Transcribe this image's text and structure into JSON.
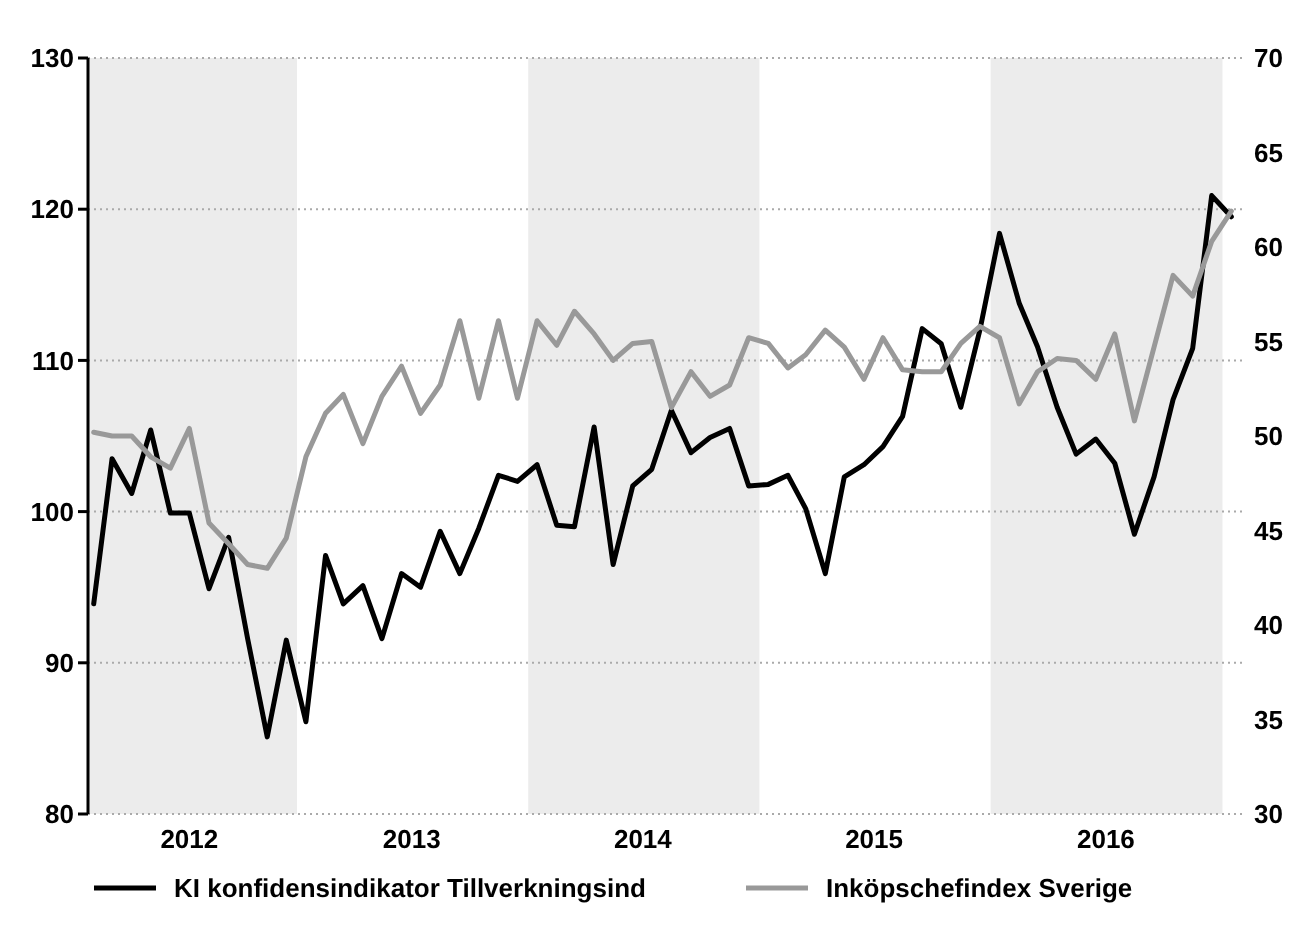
{
  "chart_data": {
    "type": "line",
    "x": [
      "2012-02-15",
      "2012-03-15",
      "2012-04-15",
      "2012-05-15",
      "2012-06-15",
      "2012-07-15",
      "2012-08-15",
      "2012-09-15",
      "2012-10-15",
      "2012-11-15",
      "2012-12-15",
      "2013-01-15",
      "2013-02-15",
      "2013-03-15",
      "2013-04-15",
      "2013-05-15",
      "2013-06-15",
      "2013-07-15",
      "2013-08-15",
      "2013-09-15",
      "2013-10-15",
      "2013-11-15",
      "2013-12-15",
      "2014-01-15",
      "2014-02-15",
      "2014-03-15",
      "2014-04-15",
      "2014-05-15",
      "2014-06-15",
      "2014-07-15",
      "2014-08-15",
      "2014-09-15",
      "2014-10-15",
      "2014-11-15",
      "2014-12-15",
      "2015-01-15",
      "2015-02-15",
      "2015-03-15",
      "2015-04-15",
      "2015-05-15",
      "2015-06-15",
      "2015-07-15",
      "2015-08-15",
      "2015-09-15",
      "2015-10-15",
      "2015-11-15",
      "2015-12-15",
      "2016-01-15",
      "2016-02-15",
      "2016-03-15",
      "2016-04-15",
      "2016-05-15",
      "2016-06-15",
      "2016-07-15",
      "2016-08-15",
      "2016-09-15",
      "2016-10-15",
      "2016-11-15",
      "2016-12-15",
      "2017-01-15"
    ],
    "series": [
      {
        "name": "KI konfidensindikator Tillverkningsind",
        "color": "#000000",
        "values": [
          93.9,
          103.5,
          101.2,
          105.4,
          99.9,
          99.9,
          94.9,
          98.3,
          91.6,
          85.1,
          91.5,
          86.1,
          97.1,
          93.9,
          95.1,
          91.6,
          95.9,
          95.0,
          98.7,
          95.9,
          98.9,
          102.4,
          102.0,
          103.1,
          99.1,
          99.0,
          105.6,
          96.5,
          101.7,
          102.8,
          106.7,
          103.9,
          104.9,
          105.5,
          101.7,
          101.8,
          102.4,
          100.2,
          95.9,
          102.3,
          103.1,
          104.3,
          106.3,
          112.1,
          111.1,
          106.9,
          112.0,
          118.4,
          113.8,
          110.9,
          106.9,
          103.8,
          104.8,
          103.2,
          98.5,
          102.3,
          107.4,
          110.8,
          120.9,
          119.5
        ]
      },
      {
        "name": "Inköpschefindex Sverige",
        "color": "#999999",
        "axis": "y2",
        "values": [
          50.2,
          50.0,
          50.0,
          48.9,
          48.3,
          50.4,
          45.4,
          44.3,
          43.2,
          43.0,
          44.6,
          48.9,
          51.2,
          52.2,
          49.6,
          52.1,
          53.7,
          51.2,
          52.7,
          56.1,
          52.0,
          56.1,
          52.0,
          56.1,
          54.8,
          56.6,
          55.4,
          54.0,
          54.9,
          55.0,
          51.5,
          53.4,
          52.1,
          52.7,
          55.2,
          54.9,
          53.6,
          54.3,
          55.6,
          54.7,
          53.0,
          55.2,
          53.5,
          53.4,
          53.4,
          54.9,
          55.8,
          55.2,
          51.7,
          53.4,
          54.1,
          54.0,
          53.0,
          55.4,
          50.8,
          54.7,
          58.5,
          57.4,
          60.3,
          61.9
        ]
      }
    ],
    "xlim": [
      "2012-02-06",
      "2017-02-04"
    ],
    "xticks": [
      {
        "value": "2012-07-15",
        "label": "2012"
      },
      {
        "value": "2013-07-01",
        "label": "2013"
      },
      {
        "value": "2014-07-01",
        "label": "2014"
      },
      {
        "value": "2015-07-01",
        "label": "2015"
      },
      {
        "value": "2016-07-01",
        "label": "2016"
      }
    ],
    "ylim": [
      80,
      130
    ],
    "yticks": [
      80,
      90,
      100,
      110,
      120,
      130
    ],
    "y2lim": [
      30,
      70
    ],
    "y2ticks": [
      30,
      35,
      40,
      45,
      50,
      55,
      60,
      65,
      70
    ],
    "bands": [
      {
        "axis": "x",
        "from": "2012-02-06",
        "to": "2013-01-01",
        "color": "#ececec"
      },
      {
        "axis": "x",
        "from": "2014-01-01",
        "to": "2015-01-01",
        "color": "#ececec"
      },
      {
        "axis": "x",
        "from": "2016-01-01",
        "to": "2017-01-01",
        "color": "#ececec"
      }
    ],
    "grid": "y",
    "legend": "bottom",
    "marker": "none",
    "line_style": "solid"
  }
}
